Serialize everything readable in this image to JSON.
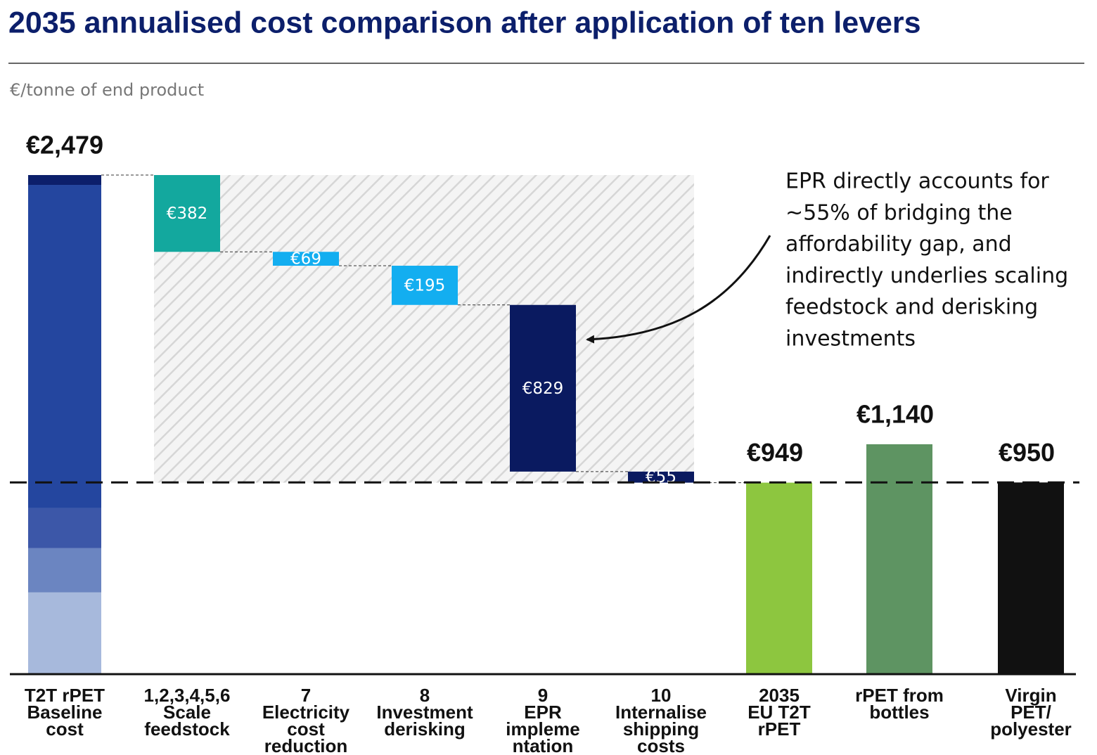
{
  "chart_data": {
    "type": "waterfall",
    "title": "2035 annualised cost comparison after application of ten levers",
    "subtitle": "€/tonne of end product",
    "categories": [
      [
        "T2T rPET",
        "Baseline",
        "cost"
      ],
      [
        "1,2,3,4,5,6",
        "Scale",
        "feedstock"
      ],
      [
        "7",
        "Electricity",
        "cost",
        "reduction"
      ],
      [
        "8",
        "Investment",
        "derisking"
      ],
      [
        "9",
        "EPR",
        "impleme",
        "ntation"
      ],
      [
        "10",
        "Internalise",
        "shipping",
        "costs"
      ],
      [
        "2035",
        "EU T2T",
        "rPET"
      ],
      [
        "rPET from",
        "bottles"
      ],
      [
        "Virgin",
        "PET/",
        "polyester"
      ]
    ],
    "steps": [
      "total",
      "decrease",
      "decrease",
      "decrease",
      "decrease",
      "decrease",
      "total",
      "total",
      "total"
    ],
    "values": [
      2479,
      382,
      69,
      195,
      829,
      55,
      949,
      1140,
      950
    ],
    "value_labels": [
      "€2,479",
      "€382",
      "€69",
      "€195",
      "€829",
      "€55",
      "€949",
      "€1,140",
      "€950"
    ],
    "colors": [
      "#24469f",
      "#13a89e",
      "#13aef0",
      "#13aef0",
      "#0a1a60",
      "#0a1a60",
      "#8dc63f",
      "#5e9462",
      "#111111"
    ],
    "segments": [
      {
        "value": 403,
        "color": "#a7b9dc"
      },
      {
        "value": 220,
        "color": "#6b85c1"
      },
      {
        "value": 199,
        "color": "#3c57a8"
      },
      {
        "value": 1608,
        "color": "#24469f"
      },
      {
        "value": 49,
        "color": "#0c1f6b"
      }
    ],
    "ylim": [
      0,
      2479
    ],
    "annotation": [
      "EPR directly accounts for",
      "~55% of bridging the",
      "affordability gap, and",
      "indirectly underlies scaling",
      "feedstock and derisking",
      "investments"
    ]
  }
}
